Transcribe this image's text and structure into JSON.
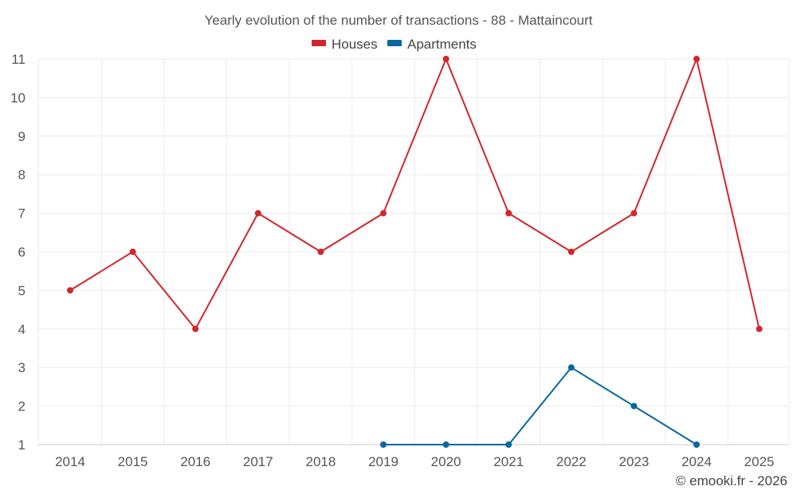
{
  "chart_data": {
    "type": "line",
    "title": "Yearly evolution of the number of transactions - 88 - Mattaincourt",
    "categories": [
      "2014",
      "2015",
      "2016",
      "2017",
      "2018",
      "2019",
      "2020",
      "2021",
      "2022",
      "2023",
      "2024",
      "2025"
    ],
    "ylim": [
      1,
      11
    ],
    "yticks": [
      "1",
      "2",
      "3",
      "4",
      "5",
      "6",
      "7",
      "8",
      "9",
      "10",
      "11"
    ],
    "grid": true,
    "legend_position": "top-center",
    "series": [
      {
        "name": "Houses",
        "color": "#d0262c",
        "values": [
          5,
          6,
          4,
          7,
          6,
          7,
          11,
          7,
          6,
          7,
          11,
          4
        ]
      },
      {
        "name": "Apartments",
        "color": "#0868a0",
        "values": [
          null,
          null,
          null,
          null,
          null,
          1,
          1,
          1,
          3,
          2,
          1,
          null
        ]
      }
    ]
  },
  "credit": "© emooki.fr - 2026"
}
